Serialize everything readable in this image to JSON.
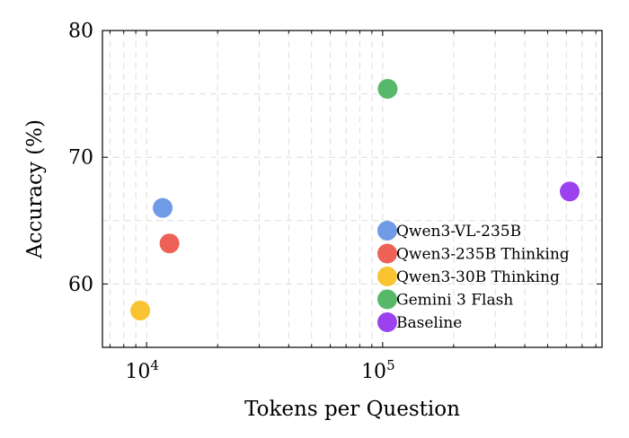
{
  "chart_data": {
    "type": "scatter",
    "xlabel": "Tokens per Question",
    "ylabel": "Accuracy (%)",
    "xscale": "log",
    "xlim": [
      6500,
      850000
    ],
    "ylim": [
      55,
      80
    ],
    "x_ticks": [
      {
        "value": 10000,
        "base": "10",
        "exp": "4"
      },
      {
        "value": 100000,
        "base": "10",
        "exp": "5"
      }
    ],
    "y_ticks": [
      60,
      70,
      80
    ],
    "grid": true,
    "legend_position": "lower-right",
    "series": [
      {
        "name": "Qwen3-VL-235B",
        "color": "#6f9be6",
        "x": 11700,
        "y": 66.0
      },
      {
        "name": "Qwen3-235B Thinking",
        "color": "#ee6157",
        "x": 12500,
        "y": 63.2
      },
      {
        "name": "Qwen3-30B Thinking",
        "color": "#f9c332",
        "x": 9400,
        "y": 57.9
      },
      {
        "name": "Gemini 3 Flash",
        "color": "#57b86b",
        "x": 105000,
        "y": 75.4
      },
      {
        "name": "Baseline",
        "color": "#9b42ee",
        "x": 620000,
        "y": 67.3
      }
    ]
  }
}
